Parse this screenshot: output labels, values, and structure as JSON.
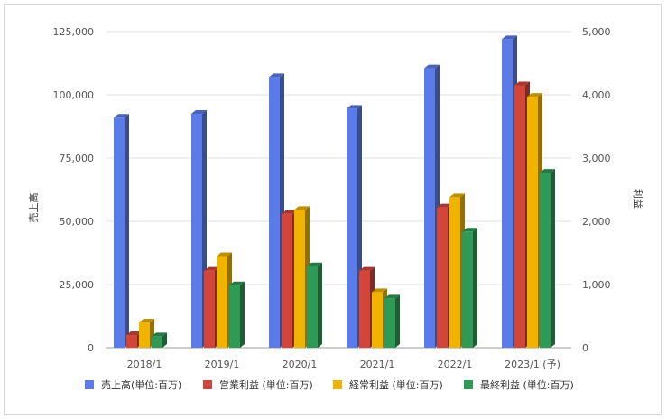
{
  "chart_data": {
    "type": "bar",
    "style": "3d-column",
    "categories": [
      "2018/1",
      "2019/1",
      "2020/1",
      "2021/1",
      "2022/1",
      "2023/1 (予)"
    ],
    "left_axis": {
      "title": "売上高",
      "range": [
        0,
        125000
      ],
      "ticks": [
        0,
        25000,
        50000,
        75000,
        100000,
        125000
      ],
      "tick_labels": [
        "0",
        "25,000",
        "50,000",
        "75,000",
        "100,000",
        "125,000"
      ]
    },
    "right_axis": {
      "title": "利益",
      "range": [
        0,
        5000
      ],
      "ticks": [
        0,
        1000,
        2000,
        3000,
        4000,
        5000
      ],
      "tick_labels": [
        "0",
        "1,000",
        "2,000",
        "3,000",
        "4,000",
        "5,000"
      ]
    },
    "grid": true,
    "legend_position": "bottom",
    "series": [
      {
        "name": "売上高(単位:百万)",
        "axis": "left",
        "color": "#5b7be8",
        "values": [
          91000,
          92500,
          107000,
          94500,
          110500,
          122000
        ]
      },
      {
        "name": "営業利益 (単位:百万)",
        "axis": "right",
        "color": "#d2453a",
        "values": [
          200,
          1220,
          2120,
          1220,
          2220,
          4150
        ]
      },
      {
        "name": "経常利益 (単位:百万)",
        "axis": "right",
        "color": "#f0b400",
        "values": [
          400,
          1450,
          2180,
          880,
          2380,
          3970
        ]
      },
      {
        "name": "最終利益 (単位:百万)",
        "axis": "right",
        "color": "#2e9a55",
        "values": [
          180,
          990,
          1290,
          780,
          1840,
          2770
        ]
      }
    ]
  }
}
